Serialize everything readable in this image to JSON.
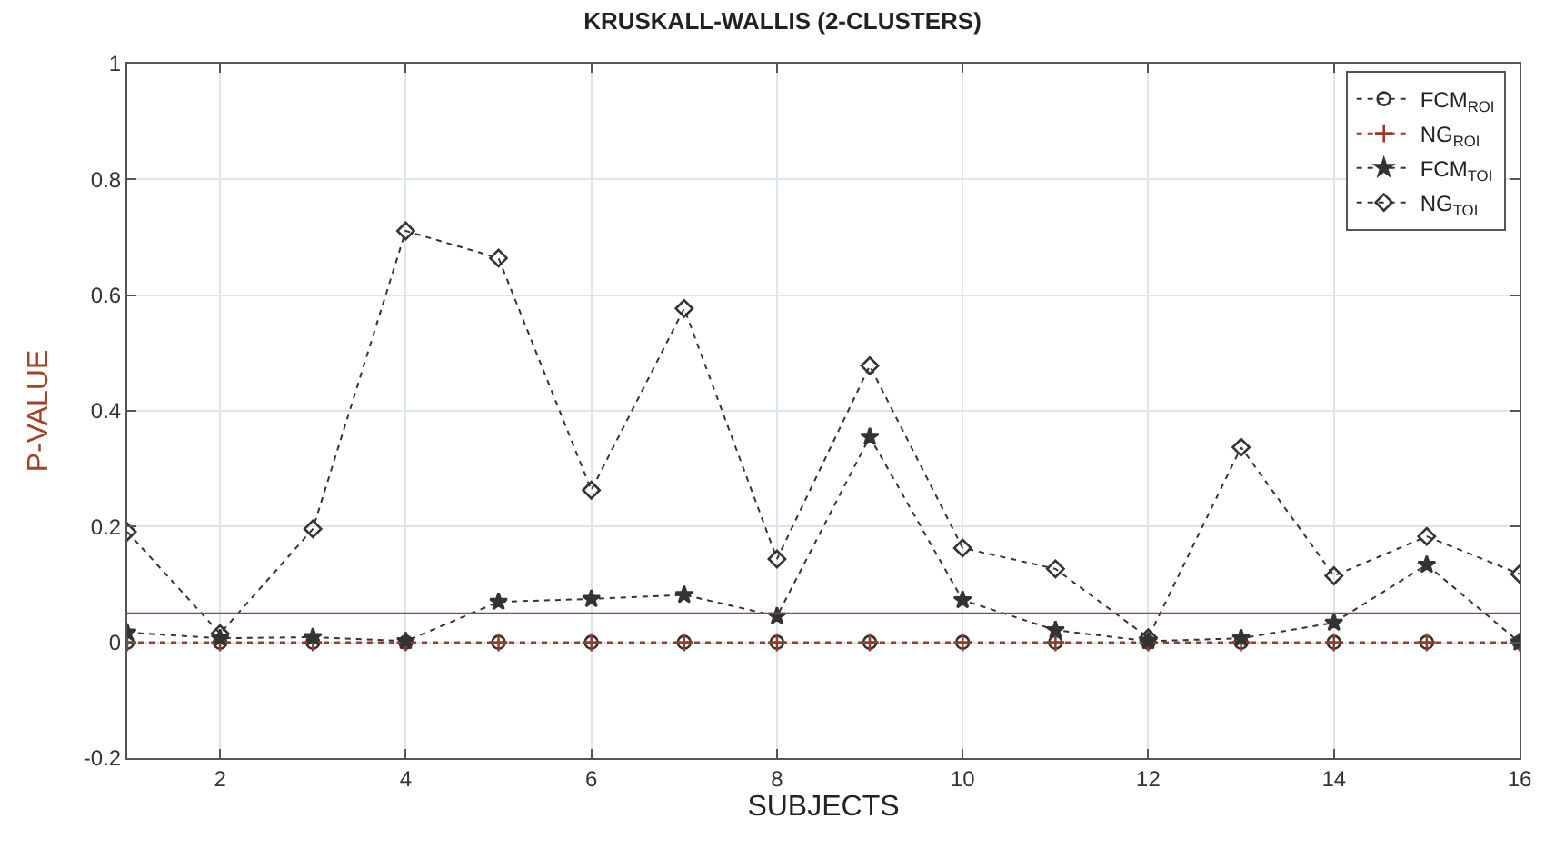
{
  "chart_data": {
    "type": "line",
    "title": "KRUSKALL-WALLIS (2-CLUSTERS)",
    "xlabel": "SUBJECTS",
    "ylabel": "P-VALUE",
    "x": [
      1,
      2,
      3,
      4,
      5,
      6,
      7,
      8,
      9,
      10,
      11,
      12,
      13,
      14,
      15,
      16
    ],
    "xlim": [
      1,
      16
    ],
    "xticks": [
      2,
      4,
      6,
      8,
      10,
      12,
      14,
      16
    ],
    "ylim": [
      -0.2,
      1
    ],
    "yticks": [
      -0.2,
      0,
      0.2,
      0.4,
      0.6,
      0.8,
      1
    ],
    "grid": true,
    "legend": "top right",
    "line_style": "dotted",
    "series": [
      {
        "name": "FCM$_{ROI}$",
        "color": "#333333",
        "marker": "circle",
        "values": [
          0,
          0,
          0,
          0,
          0,
          0,
          0,
          0,
          0,
          0,
          0,
          0,
          0,
          0,
          0,
          0
        ]
      },
      {
        "name": "NG$_{ROI}$",
        "color": "#9a3b2a",
        "marker": "cross",
        "values": [
          0,
          0,
          0,
          0,
          0,
          0,
          0,
          0,
          0,
          0,
          0,
          0,
          0,
          0,
          0,
          0
        ]
      },
      {
        "name": "FCM$_{TOI}$",
        "color": "#333333",
        "marker": "star",
        "values": [
          0.017,
          0.007,
          0.009,
          0.002,
          0.07,
          0.075,
          0.082,
          0.045,
          0.355,
          0.073,
          0.021,
          0.002,
          0.007,
          0.034,
          0.134,
          0
        ]
      },
      {
        "name": "NG$_{TOI}$",
        "color": "#333333",
        "marker": "diamond",
        "values": [
          0.191,
          0.015,
          0.196,
          0.711,
          0.664,
          0.263,
          0.577,
          0.144,
          0.478,
          0.163,
          0.127,
          0.008,
          0.337,
          0.115,
          0.183,
          0.118
        ]
      }
    ],
    "ref_lines": [
      {
        "axis": "y",
        "value": 0.05,
        "color": "#a0442c"
      }
    ]
  }
}
